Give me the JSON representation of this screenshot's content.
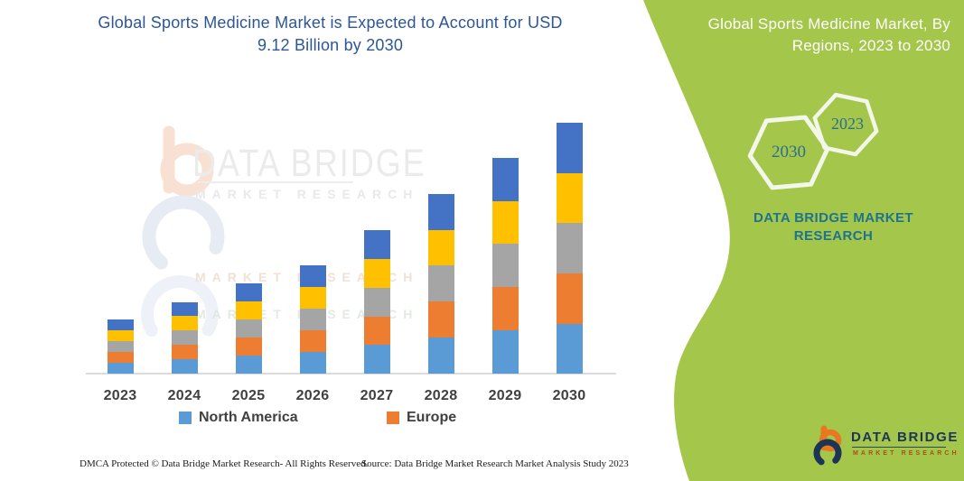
{
  "header": {
    "title_line1": "Global Sports Medicine Market is Expected to Account for USD",
    "title_line2": "9.12 Billion by 2030",
    "title_color": "#2D5697"
  },
  "side_panel": {
    "bg_color": "#A4C64A",
    "text_color": "#20738C",
    "title_line1": "Global Sports Medicine Market, By",
    "title_line2": "Regions, 2023 to 2030",
    "hexagons": [
      {
        "year": "2030"
      },
      {
        "year": "2023"
      }
    ],
    "brand_line1": "DATA BRIDGE MARKET",
    "brand_line2": "RESEARCH"
  },
  "chart_data": {
    "type": "bar",
    "stacked": true,
    "title": "Global Sports Medicine Market is Expected to Account for USD 9.12 Billion by 2030",
    "subtitle": "Global Sports Medicine Market, By Regions, 2023 to 2030",
    "unit": "USD Billion",
    "categories": [
      "2023",
      "2024",
      "2025",
      "2026",
      "2027",
      "2028",
      "2029",
      "2030"
    ],
    "series": [
      {
        "name": "North America",
        "color": "#5B9BD5",
        "values": [
          0.4,
          0.52,
          0.66,
          0.79,
          1.04,
          1.31,
          1.57,
          1.82
        ]
      },
      {
        "name": "Europe",
        "color": "#ED7D31",
        "values": [
          0.39,
          0.52,
          0.66,
          0.79,
          1.04,
          1.3,
          1.57,
          1.82
        ]
      },
      {
        "name": "Unlabeled (gray)",
        "color": "#A5A5A5",
        "values": [
          0.4,
          0.52,
          0.66,
          0.79,
          1.04,
          1.31,
          1.57,
          1.83
        ]
      },
      {
        "name": "Unlabeled (gold)",
        "color": "#FFC000",
        "values": [
          0.39,
          0.52,
          0.65,
          0.79,
          1.04,
          1.3,
          1.56,
          1.82
        ]
      },
      {
        "name": "Unlabeled (blue)",
        "color": "#4472C4",
        "values": [
          0.39,
          0.52,
          0.66,
          0.79,
          1.05,
          1.31,
          1.57,
          1.83
        ]
      }
    ],
    "totals": [
      1.97,
      2.6,
      3.29,
      3.95,
      5.21,
      6.53,
      7.84,
      9.12
    ],
    "ylim": [
      0,
      9.5
    ],
    "gridlines": false,
    "y_axis_visible": false,
    "legend_position": "bottom",
    "legend_visible_entries": [
      "North America",
      "Europe"
    ]
  },
  "watermark": {
    "line1": "DATA BRIDGE",
    "line2": "MARKET RESEARCH"
  },
  "footer": {
    "dmca": "DMCA Protected © Data Bridge Market Research- All Rights Reserved.",
    "source": "Source: Data Bridge Market Research Market Analysis Study 2023"
  },
  "logo": {
    "name": "DATA BRIDGE",
    "sub": "MARKET RESEARCH"
  }
}
